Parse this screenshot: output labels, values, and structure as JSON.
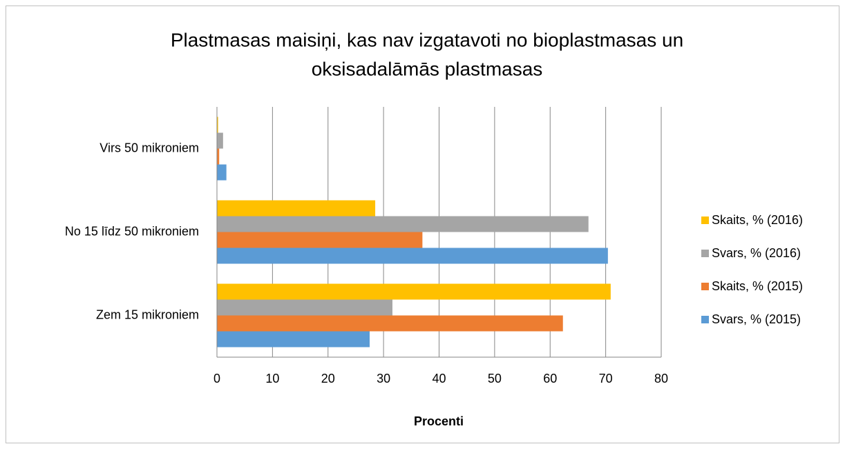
{
  "chart_data": {
    "type": "bar",
    "orientation": "horizontal",
    "title": "Plastmasas maisiņi, kas nav izgatavoti no bioplastmasas un oksisadalāmās plastmasas",
    "title_lines": [
      "Plastmasas maisiņi, kas nav izgatavoti no bioplastmasas un",
      "oksisadalāmās plastmasas"
    ],
    "x_label": "Procenti",
    "categories": [
      "Zem 15 mikroniem",
      "No 15 līdz 50 mikroniem",
      "Virs 50 mikroniem"
    ],
    "series": [
      {
        "name": "Svars, % (2015)",
        "color": "#5b9bd5",
        "values": [
          27.5,
          70.4,
          1.7
        ]
      },
      {
        "name": "Skaits, % (2015)",
        "color": "#ed7d31",
        "values": [
          62.3,
          37.0,
          0.4
        ]
      },
      {
        "name": "Svars, %  (2016)",
        "color": "#a5a5a5",
        "values": [
          31.6,
          66.9,
          1.1
        ]
      },
      {
        "name": "Skaits, % (2016)",
        "color": "#ffc000",
        "values": [
          70.9,
          28.5,
          0.2
        ]
      }
    ],
    "xlim": [
      0,
      80
    ],
    "xticks": [
      0,
      10,
      20,
      30,
      40,
      50,
      60,
      70,
      80
    ],
    "grid": true,
    "legend": "right"
  }
}
